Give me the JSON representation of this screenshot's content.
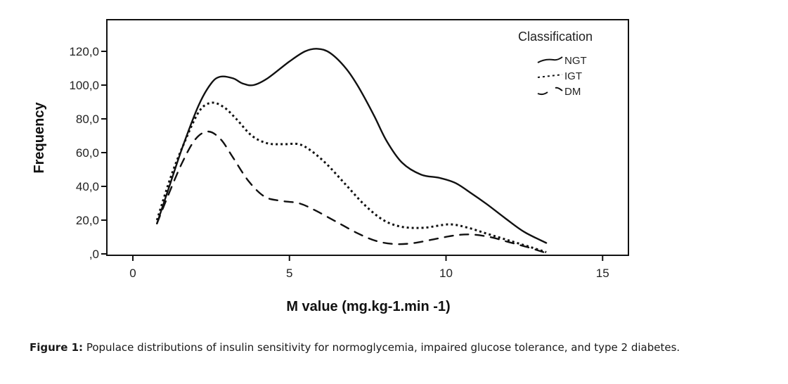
{
  "chart_data": {
    "type": "line",
    "title": "",
    "xlabel": "M value (mg.kg-1.min -1)",
    "ylabel": "Frequency",
    "xlim": [
      -0.85,
      15.8
    ],
    "ylim": [
      0,
      135
    ],
    "x_ticks": [
      0,
      5,
      10,
      15
    ],
    "x_tick_labels": [
      "0",
      "5",
      "10",
      "15"
    ],
    "y_ticks": [
      0,
      20,
      40,
      60,
      80,
      100,
      120
    ],
    "y_tick_labels": [
      ",0",
      "20,0",
      "40,0",
      "60,0",
      "80,0",
      "100,0",
      "120,0"
    ],
    "grid": false,
    "legend": {
      "title": "Classification",
      "placement": "top-right"
    },
    "series": [
      {
        "name": "NGT",
        "style": "solid",
        "points": [
          [
            0.77,
            18
          ],
          [
            1.2,
            42
          ],
          [
            1.6,
            64
          ],
          [
            2.1,
            88
          ],
          [
            2.5,
            101
          ],
          [
            2.8,
            105
          ],
          [
            3.2,
            104
          ],
          [
            3.5,
            101
          ],
          [
            3.85,
            100
          ],
          [
            4.3,
            104
          ],
          [
            5.0,
            114
          ],
          [
            5.5,
            120
          ],
          [
            5.9,
            121.5
          ],
          [
            6.3,
            119
          ],
          [
            6.8,
            110
          ],
          [
            7.2,
            99
          ],
          [
            7.7,
            82
          ],
          [
            8.1,
            67
          ],
          [
            8.6,
            54
          ],
          [
            9.2,
            47
          ],
          [
            9.8,
            45
          ],
          [
            10.3,
            42
          ],
          [
            10.8,
            36
          ],
          [
            11.3,
            29.5
          ],
          [
            11.9,
            21
          ],
          [
            12.5,
            13
          ],
          [
            13.2,
            6.5
          ]
        ]
      },
      {
        "name": "IGT",
        "style": "dotted",
        "points": [
          [
            0.77,
            20
          ],
          [
            1.2,
            45
          ],
          [
            1.6,
            64
          ],
          [
            2.1,
            84
          ],
          [
            2.5,
            89.5
          ],
          [
            2.9,
            87
          ],
          [
            3.3,
            80
          ],
          [
            3.8,
            70
          ],
          [
            4.3,
            65.5
          ],
          [
            4.8,
            65
          ],
          [
            5.3,
            65
          ],
          [
            5.7,
            61
          ],
          [
            6.2,
            53
          ],
          [
            6.8,
            41
          ],
          [
            7.4,
            29
          ],
          [
            8.0,
            20
          ],
          [
            8.6,
            16
          ],
          [
            9.3,
            15.5
          ],
          [
            10.1,
            17.5
          ],
          [
            10.7,
            15.5
          ],
          [
            11.3,
            12
          ],
          [
            12.0,
            8
          ],
          [
            12.7,
            4
          ],
          [
            13.2,
            1
          ]
        ]
      },
      {
        "name": "DM",
        "style": "dashed",
        "points": [
          [
            0.77,
            18
          ],
          [
            1.2,
            38
          ],
          [
            1.6,
            55
          ],
          [
            2.0,
            68
          ],
          [
            2.4,
            72.5
          ],
          [
            2.8,
            68
          ],
          [
            3.2,
            57
          ],
          [
            3.7,
            43
          ],
          [
            4.2,
            34
          ],
          [
            4.7,
            31.5
          ],
          [
            5.3,
            30
          ],
          [
            5.8,
            26
          ],
          [
            6.5,
            19
          ],
          [
            7.2,
            12
          ],
          [
            7.8,
            7.5
          ],
          [
            8.4,
            5.8
          ],
          [
            9.0,
            6.5
          ],
          [
            9.7,
            9
          ],
          [
            10.3,
            11
          ],
          [
            10.8,
            11.5
          ],
          [
            11.4,
            10
          ],
          [
            12.0,
            7
          ],
          [
            12.6,
            4
          ],
          [
            13.2,
            0.5
          ]
        ]
      }
    ]
  },
  "caption": {
    "label": "Figure 1:",
    "text": " Populace distributions of insulin sensitivity for normoglycemia, impaired glucose tolerance, and type 2 diabetes."
  }
}
